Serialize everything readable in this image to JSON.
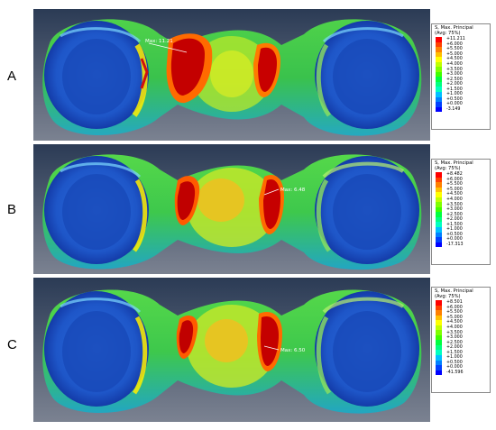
{
  "panels": [
    {
      "label": "A",
      "annotation": "Max: 11.21",
      "legend_title": [
        "S, Max. Principal",
        "(Avg: 75%)"
      ],
      "legend_values": [
        "+11.211",
        "+6.000",
        "+5.500",
        "+5.000",
        "+4.500",
        "+4.000",
        "+3.500",
        "+3.000",
        "+2.500",
        "+2.000",
        "+1.500",
        "+1.000",
        "+0.500",
        "+0.000",
        "-3.149"
      ]
    },
    {
      "label": "B",
      "annotation": "Max: 6.48",
      "legend_title": [
        "S, Max. Principal",
        "(Avg: 75%)"
      ],
      "legend_values": [
        "+8.482",
        "+6.000",
        "+5.500",
        "+5.000",
        "+4.500",
        "+4.000",
        "+3.500",
        "+3.000",
        "+2.500",
        "+2.000",
        "+1.500",
        "+1.000",
        "+0.500",
        "+0.000",
        "-17.313"
      ]
    },
    {
      "label": "C",
      "annotation": "Max: 6.50",
      "legend_title": [
        "S, Max. Principal",
        "(Avg: 75%)"
      ],
      "legend_values": [
        "+8.501",
        "+6.000",
        "+5.500",
        "+5.000",
        "+4.500",
        "+4.000",
        "+3.500",
        "+3.000",
        "+2.500",
        "+2.000",
        "+1.500",
        "+1.000",
        "+0.500",
        "+0.000",
        "-41.596"
      ]
    }
  ],
  "legend_colors": [
    "#ff0000",
    "#ff4000",
    "#ff8000",
    "#ffbf00",
    "#ffff00",
    "#c0ff00",
    "#80ff00",
    "#40ff00",
    "#00ff40",
    "#00ff80",
    "#00ffc0",
    "#00c0ff",
    "#0080ff",
    "#0040ff",
    "#0000ff"
  ],
  "colors": {
    "background_top": "#2b3b55",
    "background_bottom": "#7b8291",
    "hot": "#b00000",
    "body_blue": "#1e6ad8",
    "body_green": "#36c84a"
  }
}
